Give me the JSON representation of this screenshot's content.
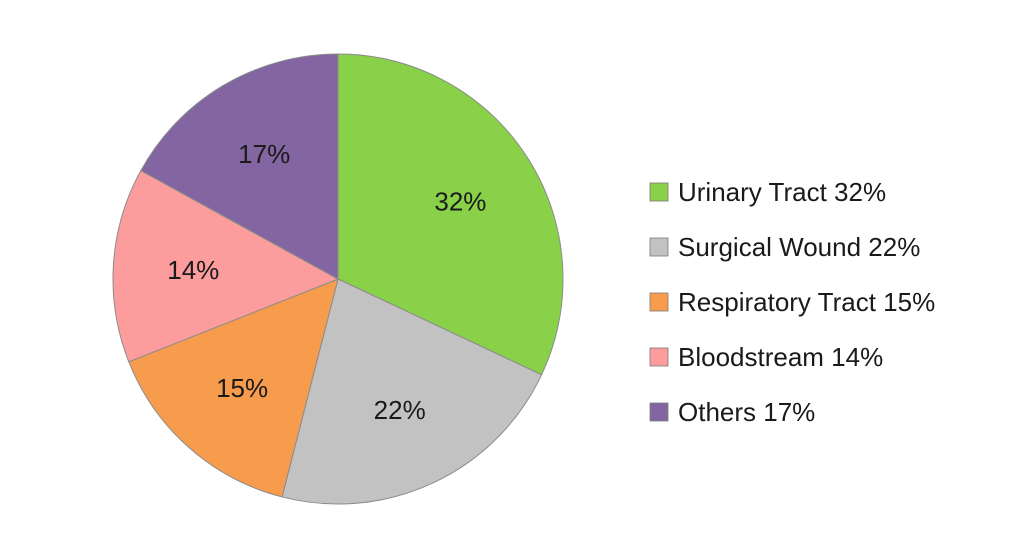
{
  "chart_data": {
    "type": "pie",
    "title": "",
    "start_angle_deg": 0,
    "direction": "clockwise",
    "legend_position": "right",
    "slices": [
      {
        "label": "Urinary Tract",
        "value": 32,
        "data_label": "32%",
        "legend_label": "Urinary Tract 32%",
        "color": "#88d148"
      },
      {
        "label": "Surgical Wound",
        "value": 22,
        "data_label": "22%",
        "legend_label": "Surgical Wound 22%",
        "color": "#c2c2c2"
      },
      {
        "label": "Respiratory Tract",
        "value": 15,
        "data_label": "15%",
        "legend_label": "Respiratory Tract 15%",
        "color": "#f79b4c"
      },
      {
        "label": "Bloodstream",
        "value": 14,
        "data_label": "14%",
        "legend_label": "Bloodstream 14%",
        "color": "#fc9c9c"
      },
      {
        "label": "Others",
        "value": 17,
        "data_label": "17%",
        "legend_label": "Others 17%",
        "color": "#8365a2"
      }
    ]
  }
}
